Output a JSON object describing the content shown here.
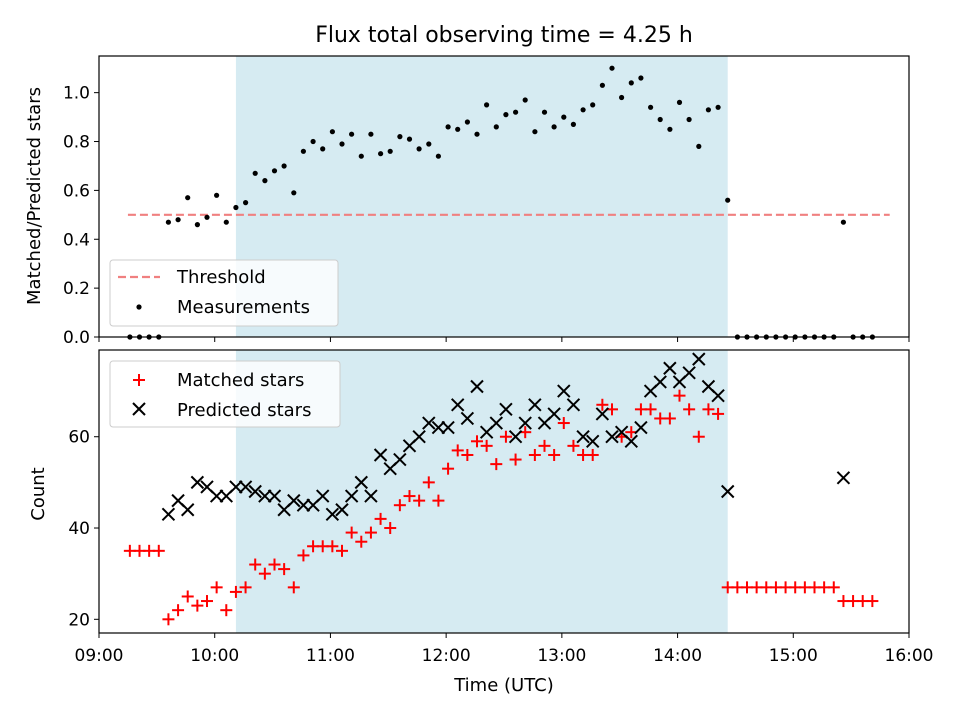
{
  "title": "Flux total observing time = 4.25 h",
  "colors": {
    "shade": "#add8e6",
    "threshold": "#f08080",
    "measurement": "#000000",
    "matched": "#ff0000",
    "predicted": "#000000"
  },
  "chart_data": [
    {
      "type": "scatter",
      "title": "Flux total observing time = 4.25 h",
      "xlabel": "",
      "ylabel": "Matched/Predicted stars",
      "xlim": [
        "09:00",
        "16:00"
      ],
      "ylim": [
        0,
        1.15
      ],
      "y_ticks": [
        "0.0",
        "0.2",
        "0.4",
        "0.6",
        "0.8",
        "1.0"
      ],
      "grid": false,
      "legend": "lower left",
      "shaded_interval": [
        "10:11",
        "14:26"
      ],
      "threshold": {
        "name": "Threshold",
        "value": 0.5,
        "x_range": [
          "09:15",
          "15:50"
        ]
      },
      "series": [
        {
          "name": "Measurements",
          "points": [
            [
              "09:16",
              0
            ],
            [
              "09:21",
              0
            ],
            [
              "09:26",
              0
            ],
            [
              "09:31",
              0
            ],
            [
              "09:36",
              0.47
            ],
            [
              "09:41",
              0.48
            ],
            [
              "09:46",
              0.57
            ],
            [
              "09:51",
              0.46
            ],
            [
              "09:56",
              0.49
            ],
            [
              "10:01",
              0.58
            ],
            [
              "10:06",
              0.47
            ],
            [
              "10:11",
              0.53
            ],
            [
              "10:16",
              0.55
            ],
            [
              "10:21",
              0.67
            ],
            [
              "10:26",
              0.64
            ],
            [
              "10:31",
              0.68
            ],
            [
              "10:36",
              0.7
            ],
            [
              "10:41",
              0.59
            ],
            [
              "10:46",
              0.76
            ],
            [
              "10:51",
              0.8
            ],
            [
              "10:56",
              0.77
            ],
            [
              "11:01",
              0.84
            ],
            [
              "11:06",
              0.79
            ],
            [
              "11:11",
              0.83
            ],
            [
              "11:16",
              0.74
            ],
            [
              "11:21",
              0.83
            ],
            [
              "11:26",
              0.75
            ],
            [
              "11:31",
              0.76
            ],
            [
              "11:36",
              0.82
            ],
            [
              "11:41",
              0.81
            ],
            [
              "11:46",
              0.77
            ],
            [
              "11:51",
              0.79
            ],
            [
              "11:56",
              0.74
            ],
            [
              "12:01",
              0.86
            ],
            [
              "12:06",
              0.85
            ],
            [
              "12:11",
              0.88
            ],
            [
              "12:16",
              0.83
            ],
            [
              "12:21",
              0.95
            ],
            [
              "12:26",
              0.86
            ],
            [
              "12:31",
              0.91
            ],
            [
              "12:36",
              0.92
            ],
            [
              "12:41",
              0.97
            ],
            [
              "12:46",
              0.84
            ],
            [
              "12:51",
              0.92
            ],
            [
              "12:56",
              0.86
            ],
            [
              "13:01",
              0.9
            ],
            [
              "13:06",
              0.87
            ],
            [
              "13:11",
              0.93
            ],
            [
              "13:16",
              0.95
            ],
            [
              "13:21",
              1.03
            ],
            [
              "13:26",
              1.1
            ],
            [
              "13:31",
              0.98
            ],
            [
              "13:36",
              1.04
            ],
            [
              "13:41",
              1.06
            ],
            [
              "13:46",
              0.94
            ],
            [
              "13:51",
              0.89
            ],
            [
              "13:56",
              0.85
            ],
            [
              "14:01",
              0.96
            ],
            [
              "14:06",
              0.89
            ],
            [
              "14:11",
              0.78
            ],
            [
              "14:16",
              0.93
            ],
            [
              "14:21",
              0.94
            ],
            [
              "14:26",
              0.56
            ],
            [
              "14:31",
              0
            ],
            [
              "14:36",
              0
            ],
            [
              "14:41",
              0
            ],
            [
              "14:46",
              0
            ],
            [
              "14:51",
              0
            ],
            [
              "14:56",
              0
            ],
            [
              "15:01",
              0
            ],
            [
              "15:06",
              0
            ],
            [
              "15:11",
              0
            ],
            [
              "15:16",
              0
            ],
            [
              "15:21",
              0
            ],
            [
              "15:26",
              0.47
            ],
            [
              "15:31",
              0
            ],
            [
              "15:36",
              0
            ],
            [
              "15:41",
              0
            ]
          ]
        }
      ]
    },
    {
      "type": "scatter",
      "xlabel": "Time (UTC)",
      "ylabel": "Count",
      "xlim": [
        "09:00",
        "16:00"
      ],
      "ylim": [
        17,
        79
      ],
      "x_ticks": [
        "09:00",
        "10:00",
        "11:00",
        "12:00",
        "13:00",
        "14:00",
        "15:00",
        "16:00"
      ],
      "y_ticks": [
        "20",
        "40",
        "60"
      ],
      "grid": false,
      "legend": "upper left",
      "shaded_interval": [
        "10:11",
        "14:26"
      ],
      "series": [
        {
          "name": "Matched stars",
          "marker": "+",
          "points": [
            [
              "09:16",
              35
            ],
            [
              "09:21",
              35
            ],
            [
              "09:26",
              35
            ],
            [
              "09:31",
              35
            ],
            [
              "09:36",
              20
            ],
            [
              "09:41",
              22
            ],
            [
              "09:46",
              25
            ],
            [
              "09:51",
              23
            ],
            [
              "09:56",
              24
            ],
            [
              "10:01",
              27
            ],
            [
              "10:06",
              22
            ],
            [
              "10:11",
              26
            ],
            [
              "10:16",
              27
            ],
            [
              "10:21",
              32
            ],
            [
              "10:26",
              30
            ],
            [
              "10:31",
              32
            ],
            [
              "10:36",
              31
            ],
            [
              "10:41",
              27
            ],
            [
              "10:46",
              34
            ],
            [
              "10:51",
              36
            ],
            [
              "10:56",
              36
            ],
            [
              "11:01",
              36
            ],
            [
              "11:06",
              35
            ],
            [
              "11:11",
              39
            ],
            [
              "11:16",
              37
            ],
            [
              "11:21",
              39
            ],
            [
              "11:26",
              42
            ],
            [
              "11:31",
              40
            ],
            [
              "11:36",
              45
            ],
            [
              "11:41",
              47
            ],
            [
              "11:46",
              46
            ],
            [
              "11:51",
              50
            ],
            [
              "11:56",
              46
            ],
            [
              "12:01",
              53
            ],
            [
              "12:06",
              57
            ],
            [
              "12:11",
              56
            ],
            [
              "12:16",
              59
            ],
            [
              "12:21",
              58
            ],
            [
              "12:26",
              54
            ],
            [
              "12:31",
              60
            ],
            [
              "12:36",
              55
            ],
            [
              "12:41",
              61
            ],
            [
              "12:46",
              56
            ],
            [
              "12:51",
              58
            ],
            [
              "12:56",
              56
            ],
            [
              "13:01",
              63
            ],
            [
              "13:06",
              58
            ],
            [
              "13:11",
              56
            ],
            [
              "13:16",
              56
            ],
            [
              "13:21",
              67
            ],
            [
              "13:26",
              66
            ],
            [
              "13:31",
              60
            ],
            [
              "13:36",
              61
            ],
            [
              "13:41",
              66
            ],
            [
              "13:46",
              66
            ],
            [
              "13:51",
              64
            ],
            [
              "13:56",
              64
            ],
            [
              "14:01",
              69
            ],
            [
              "14:06",
              66
            ],
            [
              "14:11",
              60
            ],
            [
              "14:16",
              66
            ],
            [
              "14:21",
              65
            ],
            [
              "14:26",
              27
            ],
            [
              "14:31",
              27
            ],
            [
              "14:36",
              27
            ],
            [
              "14:41",
              27
            ],
            [
              "14:46",
              27
            ],
            [
              "14:51",
              27
            ],
            [
              "14:56",
              27
            ],
            [
              "15:01",
              27
            ],
            [
              "15:06",
              27
            ],
            [
              "15:11",
              27
            ],
            [
              "15:16",
              27
            ],
            [
              "15:21",
              27
            ],
            [
              "15:26",
              24
            ],
            [
              "15:31",
              24
            ],
            [
              "15:36",
              24
            ],
            [
              "15:41",
              24
            ]
          ]
        },
        {
          "name": "Predicted stars",
          "marker": "x",
          "points": [
            [
              "09:36",
              43
            ],
            [
              "09:41",
              46
            ],
            [
              "09:46",
              44
            ],
            [
              "09:51",
              50
            ],
            [
              "09:56",
              49
            ],
            [
              "10:01",
              47
            ],
            [
              "10:06",
              47
            ],
            [
              "10:11",
              49
            ],
            [
              "10:16",
              49
            ],
            [
              "10:21",
              48
            ],
            [
              "10:26",
              47
            ],
            [
              "10:31",
              47
            ],
            [
              "10:36",
              44
            ],
            [
              "10:41",
              46
            ],
            [
              "10:46",
              45
            ],
            [
              "10:51",
              45
            ],
            [
              "10:56",
              47
            ],
            [
              "11:01",
              43
            ],
            [
              "11:06",
              44
            ],
            [
              "11:11",
              47
            ],
            [
              "11:16",
              50
            ],
            [
              "11:21",
              47
            ],
            [
              "11:26",
              56
            ],
            [
              "11:31",
              53
            ],
            [
              "11:36",
              55
            ],
            [
              "11:41",
              58
            ],
            [
              "11:46",
              60
            ],
            [
              "11:51",
              63
            ],
            [
              "11:56",
              62
            ],
            [
              "12:01",
              62
            ],
            [
              "12:06",
              67
            ],
            [
              "12:11",
              64
            ],
            [
              "12:16",
              71
            ],
            [
              "12:21",
              61
            ],
            [
              "12:26",
              63
            ],
            [
              "12:31",
              66
            ],
            [
              "12:36",
              60
            ],
            [
              "12:41",
              63
            ],
            [
              "12:46",
              67
            ],
            [
              "12:51",
              63
            ],
            [
              "12:56",
              65
            ],
            [
              "13:01",
              70
            ],
            [
              "13:06",
              67
            ],
            [
              "13:11",
              60
            ],
            [
              "13:16",
              59
            ],
            [
              "13:21",
              65
            ],
            [
              "13:26",
              60
            ],
            [
              "13:31",
              61
            ],
            [
              "13:36",
              59
            ],
            [
              "13:41",
              62
            ],
            [
              "13:46",
              70
            ],
            [
              "13:51",
              72
            ],
            [
              "13:56",
              75
            ],
            [
              "14:01",
              72
            ],
            [
              "14:06",
              74
            ],
            [
              "14:11",
              77
            ],
            [
              "14:16",
              71
            ],
            [
              "14:21",
              69
            ],
            [
              "14:26",
              48
            ],
            [
              "15:26",
              51
            ]
          ]
        }
      ]
    }
  ]
}
